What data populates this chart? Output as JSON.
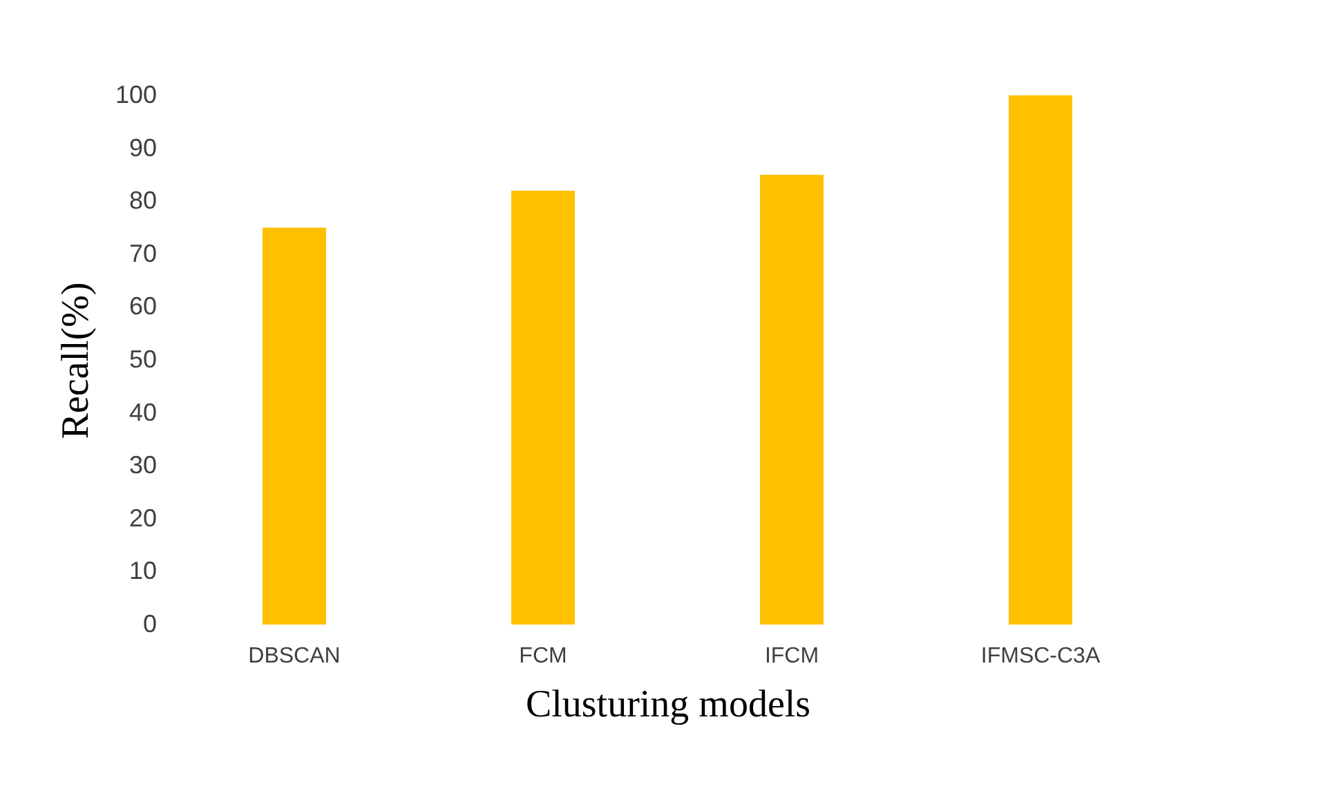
{
  "chart_data": {
    "type": "bar",
    "xlabel": "Clusturing models",
    "ylabel": "Recall(%)",
    "categories": [
      "DBSCAN",
      "FCM",
      "IFCM",
      "IFMSC-C3A"
    ],
    "values": [
      75,
      82,
      85,
      100
    ],
    "color": "#ffc000",
    "ylim": [
      0,
      100
    ],
    "yticks": [
      0,
      10,
      20,
      30,
      40,
      50,
      60,
      70,
      80,
      90,
      100
    ],
    "grid": false
  }
}
